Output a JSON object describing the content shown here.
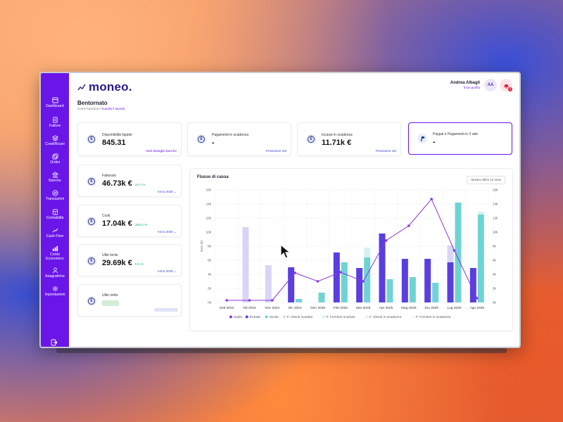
{
  "app": {
    "logo": "moneo.",
    "title": "Bentornato",
    "subtitle": "Come funziona?",
    "subtitle_link": "Guarda il tutorial"
  },
  "user": {
    "name": "Andrea Albagli",
    "profile_link": "Il tuo profilo",
    "initials": "AA",
    "notifications": "2"
  },
  "sidebar": {
    "items": [
      {
        "label": "Dashboard",
        "icon": "dashboard-icon"
      },
      {
        "label": "Fatture",
        "icon": "invoice-icon"
      },
      {
        "label": "Costi/Ricavi",
        "icon": "layers-icon"
      },
      {
        "label": "Ordini",
        "icon": "orders-icon"
      },
      {
        "label": "Banche",
        "icon": "bank-icon"
      },
      {
        "label": "Transazioni",
        "icon": "transactions-icon"
      },
      {
        "label": "Contabilità",
        "icon": "accounting-icon"
      },
      {
        "label": "Cash Flow",
        "icon": "cashflow-icon"
      },
      {
        "label": "Conto Economico",
        "icon": "income-statement-icon"
      },
      {
        "label": "Anagrafiche",
        "icon": "contacts-icon"
      },
      {
        "label": "Impostazioni",
        "icon": "settings-icon"
      }
    ]
  },
  "cards": {
    "liquidita": {
      "label": "Disponibilità liquide",
      "value": "845.31",
      "link": "Vedi dettaglio banche"
    },
    "pagamenti": {
      "label": "Pagamenti in scadenza",
      "value": "-",
      "link": "Previsione 1M"
    },
    "incassi": {
      "label": "Incassi in scadenza",
      "value": "11.71k €",
      "link": "Previsione 1M"
    },
    "paypal": {
      "label": "Paypal e Pagamenti in 3 rate",
      "value": "-"
    },
    "fatturato": {
      "label": "Fatturato",
      "value": "46.73k €",
      "pct": "44.4 %",
      "period": "Anno 2025"
    },
    "costi": {
      "label": "Costi",
      "value": "17.04k €",
      "pct": "306.6 %",
      "period": "Anno 2025"
    },
    "utile_lordo": {
      "label": "Utile lordo",
      "value": "29.69k €",
      "pct": "5.8 %",
      "period": "Anno 2025"
    },
    "utile_netto": {
      "label": "Utile netto"
    }
  },
  "chart": {
    "title": "Flusso di cassa",
    "button": "Mostra ultimi 12 mesi"
  },
  "chart_data": {
    "type": "bar",
    "categories": [
      "Sett 2024",
      "Ott 2024",
      "Nov 2024",
      "Dic 2024",
      "Gen 2025",
      "Feb 2025",
      "Mar 2025",
      "Apr 2025",
      "Mag 2025",
      "Giu 2025",
      "Lug 2025",
      "Ago 2025"
    ],
    "ylabel": "Euro (€)",
    "ylim": [
      0,
      16000
    ],
    "yticks": [
      "0k",
      "2k",
      "4k",
      "6k",
      "8k",
      "10k",
      "12k",
      "14k",
      "16k"
    ],
    "series": [
      {
        "name": "Saldo",
        "type": "line",
        "color": "#8a35e6",
        "values": [
          300,
          300,
          300,
          4200,
          3000,
          4300,
          3000,
          8800,
          10900,
          14700,
          7400,
          600
        ]
      },
      {
        "name": "Entrate",
        "color": "#5a3ee0",
        "values": [
          0,
          0,
          0,
          5000,
          0,
          7100,
          4900,
          9800,
          6200,
          6200,
          5700,
          4900
        ]
      },
      {
        "name": "Uscite",
        "color": "#6fd3d4",
        "values": [
          0,
          0,
          0,
          500,
          1400,
          5700,
          6400,
          3300,
          3600,
          2800,
          14200,
          12500
        ]
      },
      {
        "name": "F. Clienti scadute",
        "color": "#d8d5f5",
        "values": [
          0,
          10700,
          5300,
          0,
          0,
          0,
          0,
          0,
          0,
          0,
          2400,
          0
        ]
      },
      {
        "name": "F. Fornitori scadute",
        "color": "#d3f1f1",
        "values": [
          0,
          0,
          0,
          0,
          0,
          0,
          1400,
          0,
          0,
          0,
          0,
          400
        ]
      },
      {
        "name": "F. Clienti in scadenza",
        "color": "#eeecfb",
        "values": [
          0,
          0,
          0,
          0,
          0,
          0,
          0,
          0,
          0,
          0,
          0,
          0
        ]
      },
      {
        "name": "F. Fornitori in scadenza",
        "color": "#eef9f9",
        "values": [
          0,
          0,
          0,
          0,
          0,
          0,
          0,
          0,
          0,
          0,
          0,
          0
        ]
      }
    ]
  }
}
